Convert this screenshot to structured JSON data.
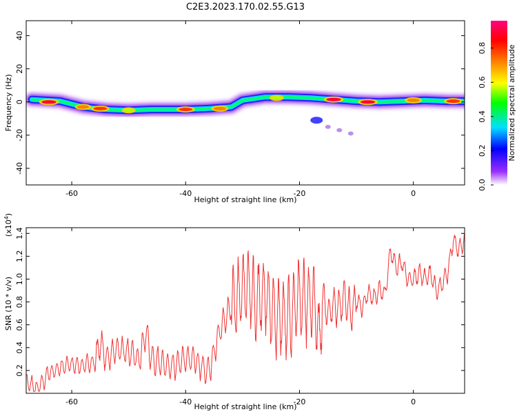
{
  "title": "C2E3.2023.170.02.55.G13",
  "chart_data": [
    {
      "type": "heatmap",
      "xlabel": "Height of straight line (km)",
      "ylabel": "Frequency (Hz)",
      "xlim": [
        -68,
        9
      ],
      "ylim": [
        -50,
        49
      ],
      "xticks": [
        -60,
        -40,
        -20,
        0
      ],
      "yticks": [
        -40,
        -20,
        0,
        20,
        40
      ],
      "colorbar": {
        "label": "Normalized spectral amplitude",
        "range": [
          0,
          0.96
        ],
        "ticks": [
          0.0,
          0.2,
          0.4,
          0.6,
          0.8
        ],
        "colormap": [
          "#ffffff",
          "#8a2be2",
          "#0000ff",
          "#00e5ff",
          "#00ff00",
          "#ffff00",
          "#ff8000",
          "#ff0000",
          "#ff0080"
        ]
      },
      "ridge": [
        {
          "x": -67,
          "y": 1.5
        },
        {
          "x": -62,
          "y": 0.5
        },
        {
          "x": -58,
          "y": -3
        },
        {
          "x": -54,
          "y": -4.5
        },
        {
          "x": -50,
          "y": -5
        },
        {
          "x": -46,
          "y": -4.5
        },
        {
          "x": -40,
          "y": -4.5
        },
        {
          "x": -36,
          "y": -4
        },
        {
          "x": -32,
          "y": -3
        },
        {
          "x": -30,
          "y": 1
        },
        {
          "x": -26,
          "y": 3
        },
        {
          "x": -22,
          "y": 3
        },
        {
          "x": -18,
          "y": 2.5
        },
        {
          "x": -14,
          "y": 1.5
        },
        {
          "x": -10,
          "y": 0.5
        },
        {
          "x": -6,
          "y": 0
        },
        {
          "x": -2,
          "y": 0.5
        },
        {
          "x": 2,
          "y": 1
        },
        {
          "x": 6,
          "y": 0.5
        },
        {
          "x": 9,
          "y": 0.5
        }
      ],
      "hotspots": [
        {
          "x": -64,
          "y": 0,
          "amp": 0.95
        },
        {
          "x": -58,
          "y": -3,
          "amp": 0.7
        },
        {
          "x": -55,
          "y": -4,
          "amp": 0.85
        },
        {
          "x": -50,
          "y": -5,
          "amp": 0.5
        },
        {
          "x": -40,
          "y": -4.5,
          "amp": 0.85
        },
        {
          "x": -34,
          "y": -4,
          "amp": 0.75
        },
        {
          "x": -24,
          "y": 2.5,
          "amp": 0.55
        },
        {
          "x": -14,
          "y": 1.5,
          "amp": 0.95
        },
        {
          "x": -8,
          "y": 0,
          "amp": 0.95
        },
        {
          "x": 0,
          "y": 1,
          "amp": 0.75
        },
        {
          "x": 7,
          "y": 0.5,
          "amp": 0.85
        }
      ],
      "side_branch": [
        {
          "x": -17,
          "y": -11
        },
        {
          "x": -15,
          "y": -15
        },
        {
          "x": -13,
          "y": -17
        },
        {
          "x": -11,
          "y": -19
        }
      ]
    },
    {
      "type": "line",
      "xlabel": "Height of straight line (km)",
      "ylabel": "SNR (10 * v/v)",
      "y_multiplier": "(x10^4)",
      "xlim": [
        -68,
        9
      ],
      "ylim": [
        0,
        14500
      ],
      "xticks": [
        -60,
        -40,
        -20,
        0
      ],
      "yticks": [
        2000,
        4000,
        6000,
        8000,
        10000,
        12000,
        14000
      ],
      "ytick_labels": [
        "0.2",
        "0.4",
        "0.6",
        "0.8",
        "1.0",
        "1.2",
        "1.4"
      ],
      "series": [
        {
          "color": "#f03030",
          "x": [
            -68,
            -66,
            -64,
            -62,
            -60,
            -58,
            -56,
            -55,
            -54,
            -52,
            -50,
            -48,
            -47,
            -46,
            -44,
            -42,
            -40,
            -38,
            -36,
            -34,
            -32,
            -31,
            -30,
            -29,
            -28,
            -27,
            -26,
            -25,
            -24,
            -23,
            -22,
            -21,
            -20,
            -19,
            -18,
            -17,
            -16.5,
            -16,
            -15,
            -14,
            -13,
            -12,
            -11,
            -10,
            -9,
            -8,
            -7,
            -6,
            -5,
            -4,
            -3,
            -2,
            -1,
            0,
            1,
            2,
            3,
            4,
            5,
            6,
            7,
            8,
            9
          ],
          "y": [
            1000,
            400,
            1800,
            2200,
            2600,
            2400,
            2800,
            4500,
            3200,
            3900,
            3600,
            3000,
            5500,
            3000,
            2500,
            2400,
            3000,
            2800,
            1800,
            5500,
            7500,
            8000,
            9000,
            9500,
            8000,
            8500,
            9000,
            7500,
            6500,
            6700,
            6500,
            7200,
            8500,
            8000,
            8200,
            7300,
            4000,
            8400,
            7000,
            7800,
            7500,
            8500,
            7000,
            8200,
            7500,
            8800,
            8300,
            9000,
            8700,
            12500,
            11000,
            11500,
            10000,
            10000,
            10500,
            10000,
            10500,
            9000,
            9500,
            10500,
            13500,
            12500,
            13500
          ]
        }
      ]
    }
  ]
}
